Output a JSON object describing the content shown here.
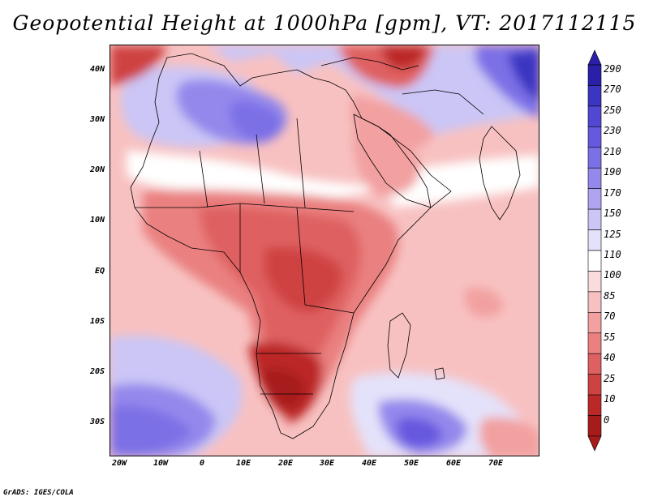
{
  "title": "Geopotential Height at 1000hPa [gpm], VT: 2017112115",
  "credit": "GrADS: IGES/COLA",
  "latitude_labels": [
    "40N",
    "30N",
    "20N",
    "10N",
    "EQ",
    "10S",
    "20S",
    "30S"
  ],
  "longitude_labels": [
    "20W",
    "10W",
    "0",
    "10E",
    "20E",
    "30E",
    "40E",
    "50E",
    "60E",
    "70E"
  ],
  "colorbar": {
    "levels": [
      "290",
      "270",
      "250",
      "230",
      "210",
      "190",
      "170",
      "150",
      "125",
      "110",
      "100",
      "85",
      "70",
      "55",
      "40",
      "25",
      "10",
      "0"
    ],
    "colors": [
      "#2a1fa8",
      "#3a35c2",
      "#5047d2",
      "#6659df",
      "#7c70e6",
      "#9488ec",
      "#aea4f1",
      "#cbc6f6",
      "#e4e2fa",
      "#ffffff",
      "#fbdcdc",
      "#f8c1c1",
      "#f2a0a0",
      "#ea8080",
      "#df6060",
      "#cf4242",
      "#bb2828",
      "#a71b1b"
    ]
  },
  "map_colors": {
    "base": "#f8c1c1",
    "boundaries": "#000000"
  }
}
